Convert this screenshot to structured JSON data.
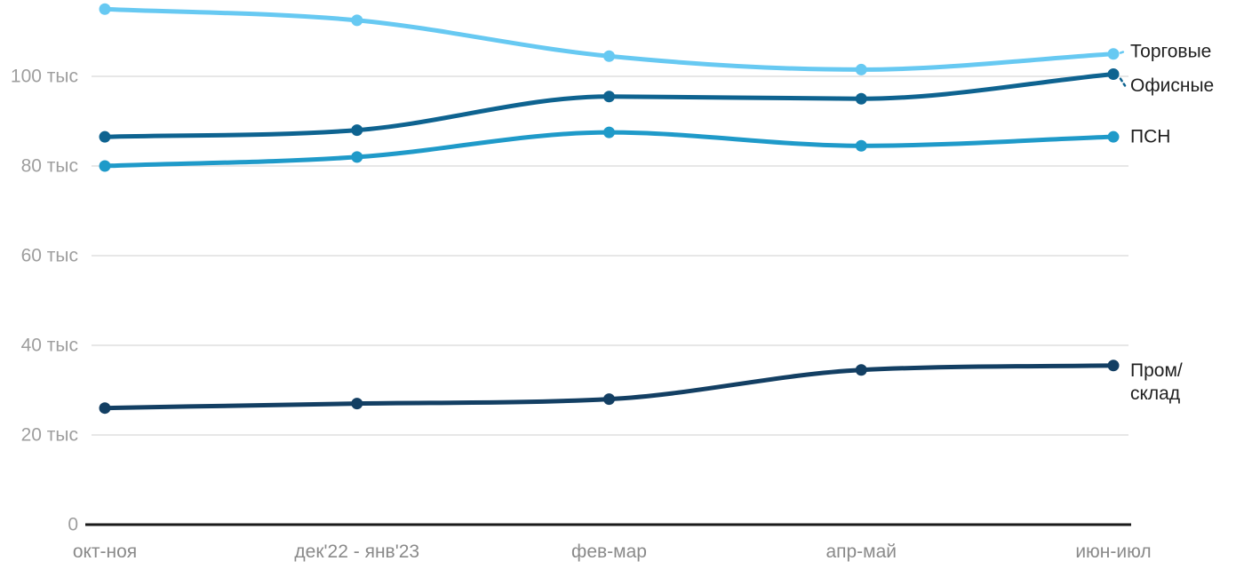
{
  "chart_data": {
    "type": "line",
    "title": "",
    "xlabel": "",
    "ylabel": "",
    "y_unit": "тыс",
    "categories": [
      "окт-ноя",
      "дек'22 - янв'23",
      "фев-мар",
      "апр-май",
      "июн-июл"
    ],
    "y_ticks": [
      {
        "value": 100,
        "label": "100 тыс"
      },
      {
        "value": 80,
        "label": "80 тыс"
      },
      {
        "value": 60,
        "label": "60 тыс"
      },
      {
        "value": 40,
        "label": "40 тыс"
      },
      {
        "value": 20,
        "label": "20 тыс"
      },
      {
        "value": 0,
        "label": "0"
      }
    ],
    "ylim": [
      0,
      117
    ],
    "grid": true,
    "legend_position": "right-inline-labels",
    "series": [
      {
        "key": "trade",
        "name": "Торговые",
        "color": "#67c9f2",
        "values": [
          115,
          112.5,
          104.5,
          101.5,
          105
        ],
        "label_lines": [
          "Торговые"
        ],
        "label_dy": -3,
        "leader": true
      },
      {
        "key": "office",
        "name": "Офисные",
        "color": "#0e6390",
        "values": [
          86.5,
          88,
          95.5,
          95,
          100.5
        ],
        "label_lines": [
          "Офисные"
        ],
        "label_dy": 13,
        "leader": true
      },
      {
        "key": "psn",
        "name": "ПСН",
        "color": "#1f9ac9",
        "values": [
          80,
          82,
          87.5,
          84.5,
          86.5
        ],
        "label_lines": [
          "ПСН"
        ],
        "label_dy": 0,
        "leader": false
      },
      {
        "key": "industrial",
        "name": "Пром/склад",
        "color": "#133f63",
        "values": [
          26,
          27,
          28,
          34.5,
          35.5
        ],
        "label_lines": [
          "Пром/",
          "склад"
        ],
        "label_dy": 6,
        "leader": false
      }
    ]
  },
  "colors": {
    "background": "#ffffff",
    "gridline": "#e7e7e7",
    "axis_line": "#1a1a1a",
    "y_tick_label": "#9e9e9e",
    "x_tick_label": "#8a8a8a",
    "series_label": "#1f1f1f"
  }
}
